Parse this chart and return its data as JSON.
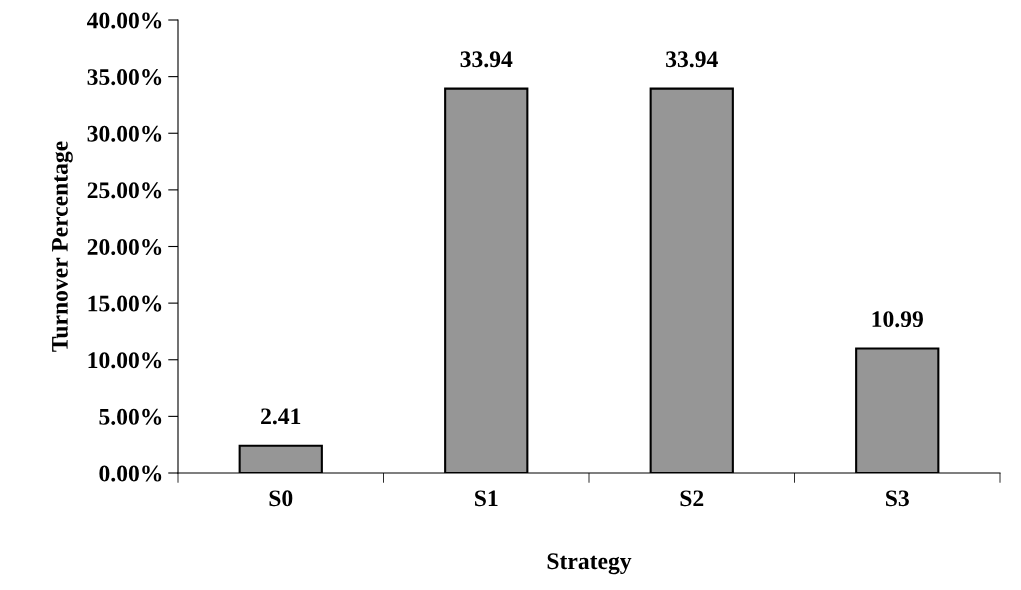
{
  "chart_data": {
    "type": "bar",
    "xlabel": "Strategy",
    "ylabel": "Turnover Percentage",
    "categories": [
      "S0",
      "S1",
      "S2",
      "S3"
    ],
    "values": [
      2.41,
      33.94,
      33.94,
      10.99
    ],
    "color": "#969696",
    "data_labels": true,
    "ylim": [
      0,
      40
    ],
    "yticks": [
      {
        "value": 0,
        "label": "0.00%"
      },
      {
        "value": 5,
        "label": "5.00%"
      },
      {
        "value": 10,
        "label": "10.00%"
      },
      {
        "value": 15,
        "label": "15.00%"
      },
      {
        "value": 20,
        "label": "20.00%"
      },
      {
        "value": 25,
        "label": "25.00%"
      },
      {
        "value": 30,
        "label": "30.00%"
      },
      {
        "value": 35,
        "label": "35.00%"
      },
      {
        "value": 40,
        "label": "40.00%"
      }
    ],
    "grid": false,
    "legend": false
  }
}
